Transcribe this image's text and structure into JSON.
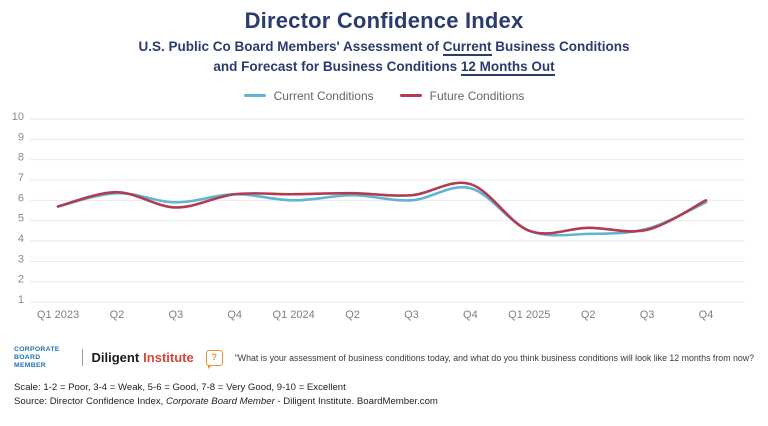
{
  "header": {
    "title": "Director Confidence Index",
    "subtitle_line1_pre": "U.S. Public Co Board Members' Assessment of ",
    "subtitle_line1_underlined": "Current",
    "subtitle_line1_post": " Business Conditions",
    "subtitle_line2_pre": "and Forecast for Business Conditions ",
    "subtitle_line2_underlined": "12 Months Out"
  },
  "colors": {
    "title_navy": "#2a3b70",
    "current_line": "#5fb5d4",
    "future_line": "#b23b50",
    "gridline": "#e9e9e9",
    "cbm_blue": "#1e6fb8",
    "institute_red": "#d9453a",
    "icon_orange": "#e8923b"
  },
  "chart_data": {
    "type": "line",
    "categories": [
      "Q1 2023",
      "Q2",
      "Q3",
      "Q4",
      "Q1 2024",
      "Q2",
      "Q3",
      "Q4",
      "Q1 2025",
      "Q2",
      "Q3",
      "Q4"
    ],
    "series": [
      {
        "name": "Current Conditions",
        "color": "#5fb5d4",
        "values": [
          5.7,
          6.35,
          5.9,
          6.3,
          6.0,
          6.25,
          6.0,
          6.6,
          4.5,
          4.35,
          4.6,
          5.9
        ]
      },
      {
        "name": "Future Conditions",
        "color": "#b23b50",
        "values": [
          5.7,
          6.4,
          5.65,
          6.3,
          6.3,
          6.35,
          6.25,
          6.8,
          4.5,
          4.65,
          4.55,
          6.0
        ]
      }
    ],
    "title": "Director Confidence Index",
    "xlabel": "",
    "ylabel": "",
    "ylim": [
      1,
      10
    ],
    "yticks": [
      1,
      2,
      3,
      4,
      5,
      6,
      7,
      8,
      9,
      10
    ],
    "grid": true,
    "legend_position": "top"
  },
  "footer": {
    "logo_corporate_line1": "CORPORATE",
    "logo_corporate_line2": "BOARD MEMBER",
    "logo_diligent": "Diligent",
    "logo_institute": "Institute",
    "question_icon_glyph": "?",
    "survey_question": "\"What is your assessment of business conditions today, and what do you think business conditions will look like 12 months from now?",
    "scale_note": "Scale: 1-2 = Poor, 3-4 = Weak, 5-6 = Good, 7-8 = Very Good, 9-10 = Excellent",
    "source_prefix": "Source: Director Confidence Index, ",
    "source_italic": "Corporate Board Member",
    "source_suffix": " - Diligent Institute. BoardMember.com"
  }
}
